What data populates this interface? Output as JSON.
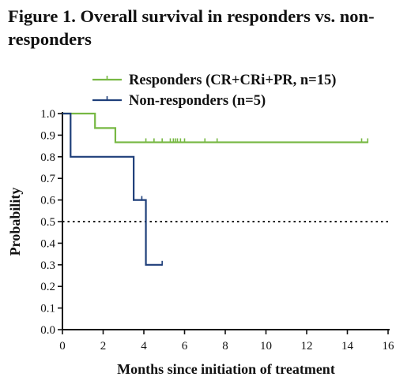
{
  "chart_data": {
    "type": "line",
    "subtype": "kaplan-meier",
    "title": "Figure 1. Overall survival in responders vs. non-responders",
    "xlabel": "Months since initiation of treatment",
    "ylabel": "Probability",
    "xlim": [
      0,
      16
    ],
    "ylim": [
      0.0,
      1.0
    ],
    "xticks": [
      0,
      2,
      4,
      6,
      8,
      10,
      12,
      14,
      16
    ],
    "yticks": [
      0.0,
      0.1,
      0.2,
      0.3,
      0.4,
      0.5,
      0.6,
      0.7,
      0.8,
      0.9,
      1.0
    ],
    "xtick_labels": [
      "0",
      "2",
      "4",
      "6",
      "8",
      "10",
      "12",
      "14",
      "16"
    ],
    "ytick_labels": [
      "0.0",
      "0.1",
      "0.2",
      "0.3",
      "0.4",
      "0.5",
      "0.6",
      "0.7",
      "0.8",
      "0.9",
      "1.0"
    ],
    "legend_position": "top",
    "grid": false,
    "reference_line": {
      "y": 0.5,
      "style": "dotted"
    },
    "series": [
      {
        "name": "Responders (CR+CRi+PR, n=15)",
        "color": "#77b843",
        "steps": [
          [
            0,
            1.0
          ],
          [
            1.6,
            0.933
          ],
          [
            2.6,
            0.867
          ],
          [
            15.0,
            0.867
          ]
        ],
        "censored": [
          4.1,
          4.5,
          4.9,
          5.3,
          5.45,
          5.55,
          5.65,
          5.8,
          6.0,
          7.0,
          7.6,
          14.7,
          15.0
        ]
      },
      {
        "name": "Non-responders (n=5)",
        "color": "#1f3f7a",
        "steps": [
          [
            0,
            1.0
          ],
          [
            0.4,
            0.8
          ],
          [
            3.5,
            0.6
          ],
          [
            4.1,
            0.3
          ],
          [
            4.9,
            0.3
          ]
        ],
        "censored": [
          3.9,
          4.9
        ]
      }
    ]
  }
}
